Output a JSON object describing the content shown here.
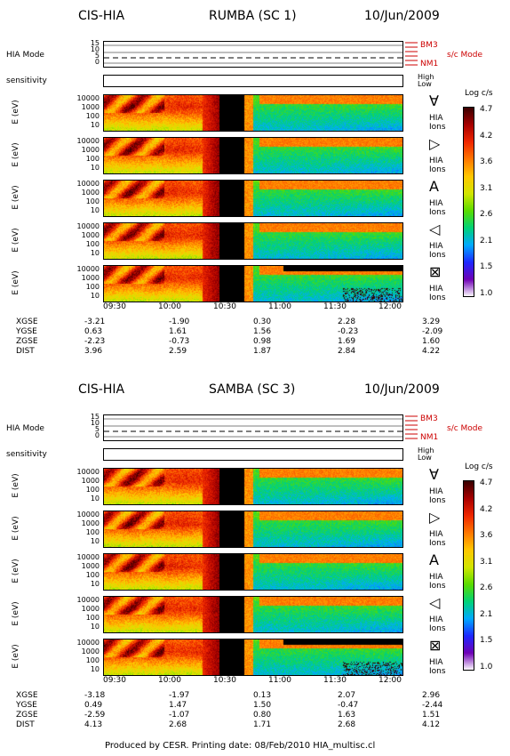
{
  "blocks": [
    {
      "instrument": "CIS-HIA",
      "spacecraft": "RUMBA (SC 1)",
      "date": "10/Jun/2009",
      "mode_label": "HIA Mode",
      "mode_ticks": [
        "15",
        "10",
        "5",
        "0"
      ],
      "mode_names": [
        "BM3",
        "NM1"
      ],
      "sc_mode": "s/c Mode",
      "sensitivity_label": "sensitivity",
      "sens_levels": [
        "High",
        "Low"
      ],
      "panels": [
        {
          "ylabel": "E (eV)",
          "yticks": [
            "10000",
            "1000",
            "100",
            "10"
          ],
          "direction_icon": "∀",
          "species": [
            "HIA",
            "Ions"
          ]
        },
        {
          "ylabel": "E (eV)",
          "yticks": [
            "10000",
            "1000",
            "100",
            "10"
          ],
          "direction_icon": "▷",
          "species": [
            "HIA",
            "Ions"
          ]
        },
        {
          "ylabel": "E (eV)",
          "yticks": [
            "10000",
            "1000",
            "100",
            "10"
          ],
          "direction_icon": "A",
          "species": [
            "HIA",
            "Ions"
          ]
        },
        {
          "ylabel": "E (eV)",
          "yticks": [
            "10000",
            "1000",
            "100",
            "10"
          ],
          "direction_icon": "◁",
          "species": [
            "HIA",
            "Ions"
          ]
        },
        {
          "ylabel": "E (eV)",
          "yticks": [
            "10000",
            "1000",
            "100",
            "10"
          ],
          "direction_icon": "⊠",
          "species": [
            "HIA",
            "Ions"
          ]
        }
      ],
      "times": [
        "09:30",
        "10:00",
        "10:30",
        "11:00",
        "11:30",
        "12:00"
      ],
      "orbit": [
        {
          "name": "XGSE",
          "values": [
            "-3.21",
            "-1.90",
            "0.30",
            "2.28",
            "3.29"
          ]
        },
        {
          "name": "YGSE",
          "values": [
            "0.63",
            "1.61",
            "1.56",
            "-0.23",
            "-2.09"
          ]
        },
        {
          "name": "ZGSE",
          "values": [
            "-2.23",
            "-0.73",
            "0.98",
            "1.69",
            "1.60"
          ]
        },
        {
          "name": "DIST",
          "values": [
            "3.96",
            "2.59",
            "1.87",
            "2.84",
            "4.22"
          ]
        }
      ],
      "colorbar": {
        "title": "Log c/s",
        "ticks": [
          "4.7",
          "4.2",
          "3.6",
          "3.1",
          "2.6",
          "2.1",
          "1.5",
          "1.0"
        ]
      }
    },
    {
      "instrument": "CIS-HIA",
      "spacecraft": "SAMBA (SC 3)",
      "date": "10/Jun/2009",
      "mode_label": "HIA Mode",
      "mode_ticks": [
        "15",
        "10",
        "5",
        "0"
      ],
      "mode_names": [
        "BM3",
        "NM1"
      ],
      "sc_mode": "s/c Mode",
      "sensitivity_label": "sensitivity",
      "sens_levels": [
        "High",
        "Low"
      ],
      "panels": [
        {
          "ylabel": "E (eV)",
          "yticks": [
            "10000",
            "1000",
            "100",
            "10"
          ],
          "direction_icon": "∀",
          "species": [
            "HIA",
            "Ions"
          ]
        },
        {
          "ylabel": "E (eV)",
          "yticks": [
            "10000",
            "1000",
            "100",
            "10"
          ],
          "direction_icon": "▷",
          "species": [
            "HIA",
            "Ions"
          ]
        },
        {
          "ylabel": "E (eV)",
          "yticks": [
            "10000",
            "1000",
            "100",
            "10"
          ],
          "direction_icon": "A",
          "species": [
            "HIA",
            "Ions"
          ]
        },
        {
          "ylabel": "E (eV)",
          "yticks": [
            "10000",
            "1000",
            "100",
            "10"
          ],
          "direction_icon": "◁",
          "species": [
            "HIA",
            "Ions"
          ]
        },
        {
          "ylabel": "E (eV)",
          "yticks": [
            "10000",
            "1000",
            "100",
            "10"
          ],
          "direction_icon": "⊠",
          "species": [
            "HIA",
            "Ions"
          ]
        }
      ],
      "times": [
        "09:30",
        "10:00",
        "10:30",
        "11:00",
        "11:30",
        "12:00"
      ],
      "orbit": [
        {
          "name": "XGSE",
          "values": [
            "-3.18",
            "-1.97",
            "0.13",
            "2.07",
            "2.96"
          ]
        },
        {
          "name": "YGSE",
          "values": [
            "0.49",
            "1.47",
            "1.50",
            "-0.47",
            "-2.44"
          ]
        },
        {
          "name": "ZGSE",
          "values": [
            "-2.59",
            "-1.07",
            "0.80",
            "1.63",
            "1.51"
          ]
        },
        {
          "name": "DIST",
          "values": [
            "4.13",
            "2.68",
            "1.71",
            "2.68",
            "4.12"
          ]
        }
      ],
      "colorbar": {
        "title": "Log c/s",
        "ticks": [
          "4.7",
          "4.2",
          "3.6",
          "3.1",
          "2.6",
          "2.1",
          "1.5",
          "1.0"
        ]
      }
    }
  ],
  "footer": "Produced by CESR.   Printing date: 08/Feb/2010   HIA_multisc.cl",
  "chart_data": {
    "type": "heatmap",
    "title": "CIS-HIA",
    "colorbar_label": "Log c/s",
    "colorbar_range": [
      1.0,
      4.7
    ],
    "x_ticks": [
      "09:30",
      "10:00",
      "10:30",
      "11:00",
      "11:30",
      "12:00"
    ],
    "ylabel": "E (eV)",
    "y_scale": "log",
    "y_ticks": [
      10,
      100,
      1000,
      10000
    ],
    "series": [
      {
        "name": "RUMBA (SC 1)"
      },
      {
        "name": "SAMBA (SC 3)"
      }
    ]
  },
  "colors": {
    "black_gap": "#000000",
    "mode_red": "#cc0000"
  }
}
